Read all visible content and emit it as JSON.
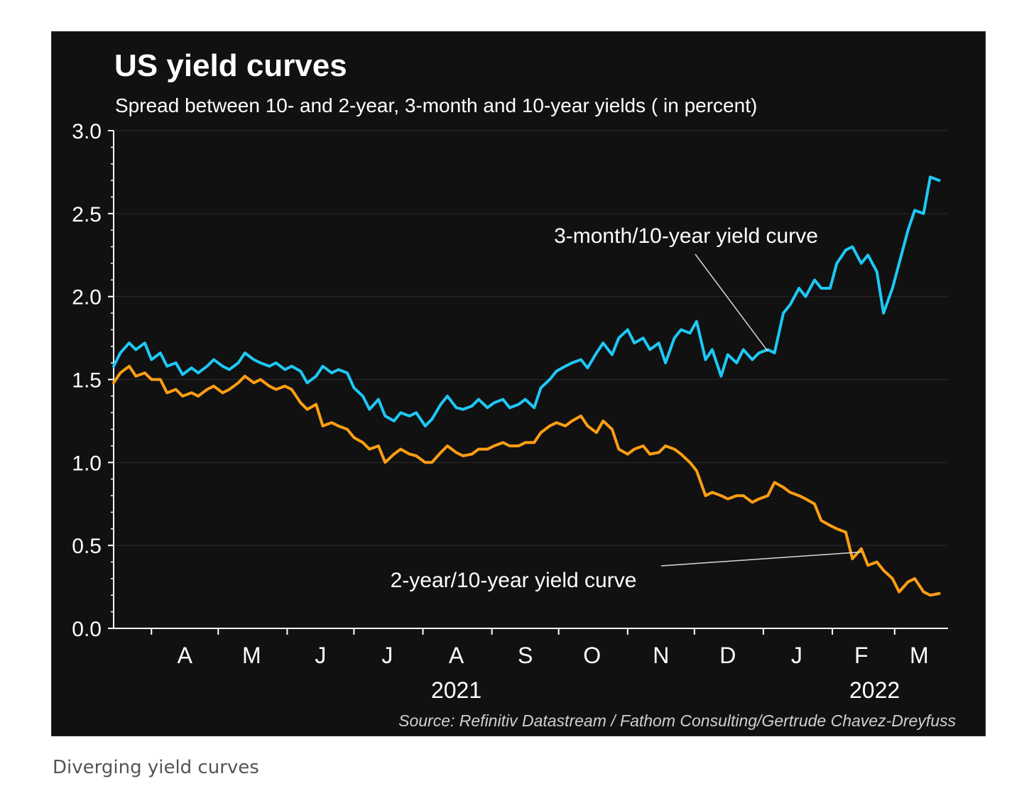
{
  "caption": "Diverging yield curves",
  "colors": {
    "background": "#111111",
    "series_3m10y": "#1ec8f5",
    "series_2y10y": "#ff9e14",
    "text": "#ffffff",
    "axis": "#ffffff",
    "grid": "#2a2a2a"
  },
  "chart_data": {
    "type": "line",
    "title": "US yield curves",
    "subtitle": "Spread between 10- and 2-year, 3-month and 10-year yields ( in percent)",
    "source": "Source: Refinitiv Datastream / Fathom Consulting/Gertrude Chavez-Dreyfuss",
    "ylim": [
      0,
      3
    ],
    "xlim": [
      "2021-03-15",
      "2022-03-25"
    ],
    "y_ticks": [
      "0.0",
      "0.5",
      "1.0",
      "1.5",
      "2.0",
      "2.5",
      "3.0"
    ],
    "month_labels": [
      {
        "label": "A",
        "date": "2021-04-16"
      },
      {
        "label": "M",
        "date": "2021-05-16"
      },
      {
        "label": "J",
        "date": "2021-06-16"
      },
      {
        "label": "J",
        "date": "2021-07-16"
      },
      {
        "label": "A",
        "date": "2021-08-16"
      },
      {
        "label": "S",
        "date": "2021-09-16"
      },
      {
        "label": "O",
        "date": "2021-10-16"
      },
      {
        "label": "N",
        "date": "2021-11-16"
      },
      {
        "label": "D",
        "date": "2021-12-16"
      },
      {
        "label": "J",
        "date": "2022-01-16"
      },
      {
        "label": "F",
        "date": "2022-02-14"
      },
      {
        "label": "M",
        "date": "2022-03-12"
      }
    ],
    "year_labels": [
      {
        "label": "2021",
        "date": "2021-08-16"
      },
      {
        "label": "2022",
        "date": "2022-02-20"
      }
    ],
    "grid": true,
    "series": [
      {
        "name": "3-month/10-year yield curve",
        "color": "#1ec8f5",
        "points": [
          [
            "2021-03-15",
            1.58
          ],
          [
            "2021-03-18",
            1.66
          ],
          [
            "2021-03-22",
            1.72
          ],
          [
            "2021-03-25",
            1.68
          ],
          [
            "2021-03-29",
            1.72
          ],
          [
            "2021-04-01",
            1.62
          ],
          [
            "2021-04-05",
            1.66
          ],
          [
            "2021-04-08",
            1.58
          ],
          [
            "2021-04-12",
            1.6
          ],
          [
            "2021-04-15",
            1.53
          ],
          [
            "2021-04-19",
            1.57
          ],
          [
            "2021-04-22",
            1.54
          ],
          [
            "2021-04-26",
            1.58
          ],
          [
            "2021-04-29",
            1.62
          ],
          [
            "2021-05-03",
            1.58
          ],
          [
            "2021-05-06",
            1.56
          ],
          [
            "2021-05-10",
            1.6
          ],
          [
            "2021-05-13",
            1.66
          ],
          [
            "2021-05-17",
            1.62
          ],
          [
            "2021-05-20",
            1.6
          ],
          [
            "2021-05-24",
            1.58
          ],
          [
            "2021-05-27",
            1.6
          ],
          [
            "2021-05-31",
            1.56
          ],
          [
            "2021-06-03",
            1.58
          ],
          [
            "2021-06-07",
            1.55
          ],
          [
            "2021-06-10",
            1.48
          ],
          [
            "2021-06-14",
            1.52
          ],
          [
            "2021-06-17",
            1.58
          ],
          [
            "2021-06-21",
            1.54
          ],
          [
            "2021-06-24",
            1.56
          ],
          [
            "2021-06-28",
            1.54
          ],
          [
            "2021-07-01",
            1.45
          ],
          [
            "2021-07-05",
            1.4
          ],
          [
            "2021-07-08",
            1.32
          ],
          [
            "2021-07-12",
            1.38
          ],
          [
            "2021-07-15",
            1.28
          ],
          [
            "2021-07-19",
            1.25
          ],
          [
            "2021-07-22",
            1.3
          ],
          [
            "2021-07-26",
            1.28
          ],
          [
            "2021-07-29",
            1.3
          ],
          [
            "2021-08-02",
            1.22
          ],
          [
            "2021-08-05",
            1.26
          ],
          [
            "2021-08-09",
            1.35
          ],
          [
            "2021-08-12",
            1.4
          ],
          [
            "2021-08-16",
            1.33
          ],
          [
            "2021-08-19",
            1.32
          ],
          [
            "2021-08-23",
            1.34
          ],
          [
            "2021-08-26",
            1.38
          ],
          [
            "2021-08-30",
            1.33
          ],
          [
            "2021-09-02",
            1.36
          ],
          [
            "2021-09-06",
            1.38
          ],
          [
            "2021-09-09",
            1.33
          ],
          [
            "2021-09-13",
            1.35
          ],
          [
            "2021-09-16",
            1.38
          ],
          [
            "2021-09-20",
            1.33
          ],
          [
            "2021-09-23",
            1.45
          ],
          [
            "2021-09-27",
            1.5
          ],
          [
            "2021-09-30",
            1.55
          ],
          [
            "2021-10-04",
            1.58
          ],
          [
            "2021-10-07",
            1.6
          ],
          [
            "2021-10-11",
            1.62
          ],
          [
            "2021-10-14",
            1.57
          ],
          [
            "2021-10-18",
            1.66
          ],
          [
            "2021-10-21",
            1.72
          ],
          [
            "2021-10-25",
            1.65
          ],
          [
            "2021-10-28",
            1.75
          ],
          [
            "2021-11-01",
            1.8
          ],
          [
            "2021-11-04",
            1.72
          ],
          [
            "2021-11-08",
            1.75
          ],
          [
            "2021-11-11",
            1.68
          ],
          [
            "2021-11-15",
            1.72
          ],
          [
            "2021-11-18",
            1.6
          ],
          [
            "2021-11-22",
            1.75
          ],
          [
            "2021-11-25",
            1.8
          ],
          [
            "2021-11-29",
            1.78
          ],
          [
            "2021-12-02",
            1.85
          ],
          [
            "2021-12-06",
            1.62
          ],
          [
            "2021-12-09",
            1.68
          ],
          [
            "2021-12-13",
            1.52
          ],
          [
            "2021-12-16",
            1.65
          ],
          [
            "2021-12-20",
            1.6
          ],
          [
            "2021-12-23",
            1.68
          ],
          [
            "2021-12-27",
            1.62
          ],
          [
            "2021-12-30",
            1.66
          ],
          [
            "2022-01-03",
            1.68
          ],
          [
            "2022-01-06",
            1.66
          ],
          [
            "2022-01-10",
            1.9
          ],
          [
            "2022-01-13",
            1.95
          ],
          [
            "2022-01-17",
            2.05
          ],
          [
            "2022-01-20",
            2.0
          ],
          [
            "2022-01-24",
            2.1
          ],
          [
            "2022-01-27",
            2.05
          ],
          [
            "2022-01-31",
            2.05
          ],
          [
            "2022-02-03",
            2.2
          ],
          [
            "2022-02-07",
            2.28
          ],
          [
            "2022-02-10",
            2.3
          ],
          [
            "2022-02-14",
            2.2
          ],
          [
            "2022-02-17",
            2.25
          ],
          [
            "2022-02-21",
            2.15
          ],
          [
            "2022-02-24",
            1.9
          ],
          [
            "2022-02-28",
            2.05
          ],
          [
            "2022-03-03",
            2.2
          ],
          [
            "2022-03-07",
            2.4
          ],
          [
            "2022-03-10",
            2.52
          ],
          [
            "2022-03-14",
            2.5
          ],
          [
            "2022-03-17",
            2.72
          ],
          [
            "2022-03-21",
            2.7
          ]
        ]
      },
      {
        "name": "2-year/10-year yield curve",
        "color": "#ff9e14",
        "points": [
          [
            "2021-03-15",
            1.48
          ],
          [
            "2021-03-18",
            1.54
          ],
          [
            "2021-03-22",
            1.58
          ],
          [
            "2021-03-25",
            1.52
          ],
          [
            "2021-03-29",
            1.54
          ],
          [
            "2021-04-01",
            1.5
          ],
          [
            "2021-04-05",
            1.5
          ],
          [
            "2021-04-08",
            1.42
          ],
          [
            "2021-04-12",
            1.44
          ],
          [
            "2021-04-15",
            1.4
          ],
          [
            "2021-04-19",
            1.42
          ],
          [
            "2021-04-22",
            1.4
          ],
          [
            "2021-04-26",
            1.44
          ],
          [
            "2021-04-29",
            1.46
          ],
          [
            "2021-05-03",
            1.42
          ],
          [
            "2021-05-06",
            1.44
          ],
          [
            "2021-05-10",
            1.48
          ],
          [
            "2021-05-13",
            1.52
          ],
          [
            "2021-05-17",
            1.48
          ],
          [
            "2021-05-20",
            1.5
          ],
          [
            "2021-05-24",
            1.46
          ],
          [
            "2021-05-27",
            1.44
          ],
          [
            "2021-05-31",
            1.46
          ],
          [
            "2021-06-03",
            1.44
          ],
          [
            "2021-06-07",
            1.36
          ],
          [
            "2021-06-10",
            1.32
          ],
          [
            "2021-06-14",
            1.35
          ],
          [
            "2021-06-17",
            1.22
          ],
          [
            "2021-06-21",
            1.24
          ],
          [
            "2021-06-24",
            1.22
          ],
          [
            "2021-06-28",
            1.2
          ],
          [
            "2021-07-01",
            1.15
          ],
          [
            "2021-07-05",
            1.12
          ],
          [
            "2021-07-08",
            1.08
          ],
          [
            "2021-07-12",
            1.1
          ],
          [
            "2021-07-15",
            1.0
          ],
          [
            "2021-07-19",
            1.05
          ],
          [
            "2021-07-22",
            1.08
          ],
          [
            "2021-07-26",
            1.05
          ],
          [
            "2021-07-29",
            1.04
          ],
          [
            "2021-08-02",
            1.0
          ],
          [
            "2021-08-05",
            1.0
          ],
          [
            "2021-08-09",
            1.06
          ],
          [
            "2021-08-12",
            1.1
          ],
          [
            "2021-08-16",
            1.06
          ],
          [
            "2021-08-19",
            1.04
          ],
          [
            "2021-08-23",
            1.05
          ],
          [
            "2021-08-26",
            1.08
          ],
          [
            "2021-08-30",
            1.08
          ],
          [
            "2021-09-02",
            1.1
          ],
          [
            "2021-09-06",
            1.12
          ],
          [
            "2021-09-09",
            1.1
          ],
          [
            "2021-09-13",
            1.1
          ],
          [
            "2021-09-16",
            1.12
          ],
          [
            "2021-09-20",
            1.12
          ],
          [
            "2021-09-23",
            1.18
          ],
          [
            "2021-09-27",
            1.22
          ],
          [
            "2021-09-30",
            1.24
          ],
          [
            "2021-10-04",
            1.22
          ],
          [
            "2021-10-07",
            1.25
          ],
          [
            "2021-10-11",
            1.28
          ],
          [
            "2021-10-14",
            1.22
          ],
          [
            "2021-10-18",
            1.18
          ],
          [
            "2021-10-21",
            1.25
          ],
          [
            "2021-10-25",
            1.2
          ],
          [
            "2021-10-28",
            1.08
          ],
          [
            "2021-11-01",
            1.05
          ],
          [
            "2021-11-04",
            1.08
          ],
          [
            "2021-11-08",
            1.1
          ],
          [
            "2021-11-11",
            1.05
          ],
          [
            "2021-11-15",
            1.06
          ],
          [
            "2021-11-18",
            1.1
          ],
          [
            "2021-11-22",
            1.08
          ],
          [
            "2021-11-25",
            1.05
          ],
          [
            "2021-11-29",
            1.0
          ],
          [
            "2021-12-02",
            0.95
          ],
          [
            "2021-12-06",
            0.8
          ],
          [
            "2021-12-09",
            0.82
          ],
          [
            "2021-12-13",
            0.8
          ],
          [
            "2021-12-16",
            0.78
          ],
          [
            "2021-12-20",
            0.8
          ],
          [
            "2021-12-23",
            0.8
          ],
          [
            "2021-12-27",
            0.76
          ],
          [
            "2021-12-30",
            0.78
          ],
          [
            "2022-01-03",
            0.8
          ],
          [
            "2022-01-06",
            0.88
          ],
          [
            "2022-01-10",
            0.85
          ],
          [
            "2022-01-13",
            0.82
          ],
          [
            "2022-01-17",
            0.8
          ],
          [
            "2022-01-20",
            0.78
          ],
          [
            "2022-01-24",
            0.75
          ],
          [
            "2022-01-27",
            0.65
          ],
          [
            "2022-01-31",
            0.62
          ],
          [
            "2022-02-03",
            0.6
          ],
          [
            "2022-02-07",
            0.58
          ],
          [
            "2022-02-10",
            0.42
          ],
          [
            "2022-02-14",
            0.48
          ],
          [
            "2022-02-17",
            0.38
          ],
          [
            "2022-02-21",
            0.4
          ],
          [
            "2022-02-24",
            0.35
          ],
          [
            "2022-02-28",
            0.3
          ],
          [
            "2022-03-03",
            0.22
          ],
          [
            "2022-03-07",
            0.28
          ],
          [
            "2022-03-10",
            0.3
          ],
          [
            "2022-03-14",
            0.22
          ],
          [
            "2022-03-17",
            0.2
          ],
          [
            "2022-03-21",
            0.21
          ]
        ]
      }
    ],
    "annotations": [
      {
        "text": "3-month/10-year yield curve",
        "series_index": 0,
        "pointer_date": "2022-01-03",
        "pointer_value": 1.67
      },
      {
        "text": "2-year/10-year yield curve",
        "series_index": 1,
        "pointer_date": "2022-02-14",
        "pointer_value": 0.46
      }
    ]
  }
}
